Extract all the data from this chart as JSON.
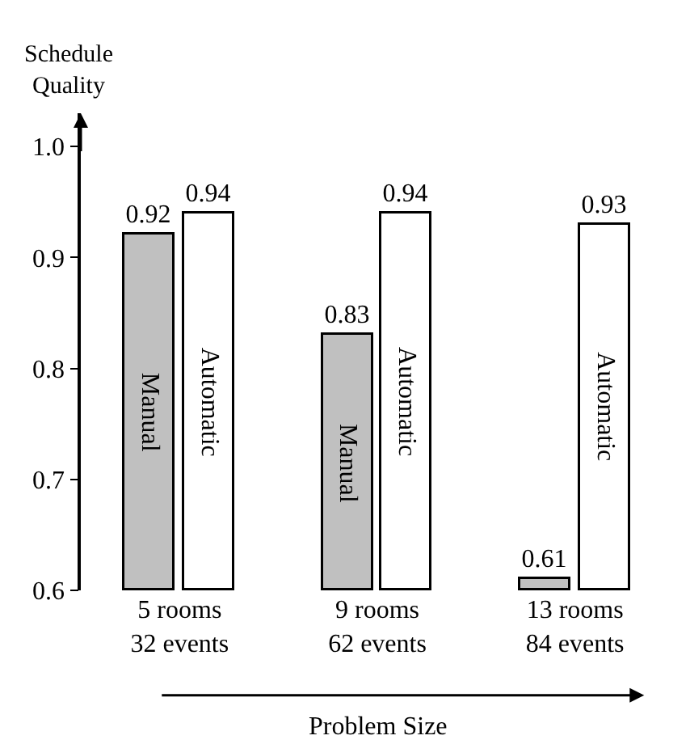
{
  "chart_data": {
    "type": "bar",
    "ylabel": "Schedule Quality",
    "xlabel": "Problem Size",
    "categories": [
      "5 rooms\n32 events",
      "9 rooms\n62 events",
      "13 rooms\n84 events"
    ],
    "series": [
      {
        "name": "Manual",
        "color": "#c0c0c0",
        "values": [
          0.92,
          0.83,
          0.61
        ]
      },
      {
        "name": "Automatic",
        "color": "#ffffff",
        "values": [
          0.94,
          0.94,
          0.93
        ]
      }
    ],
    "ylim": [
      0.6,
      1.03
    ],
    "yticks": [
      0.6,
      0.7,
      0.8,
      0.9,
      {
        "value": 1,
        "label": "1.0"
      }
    ],
    "data_labels": true
  }
}
